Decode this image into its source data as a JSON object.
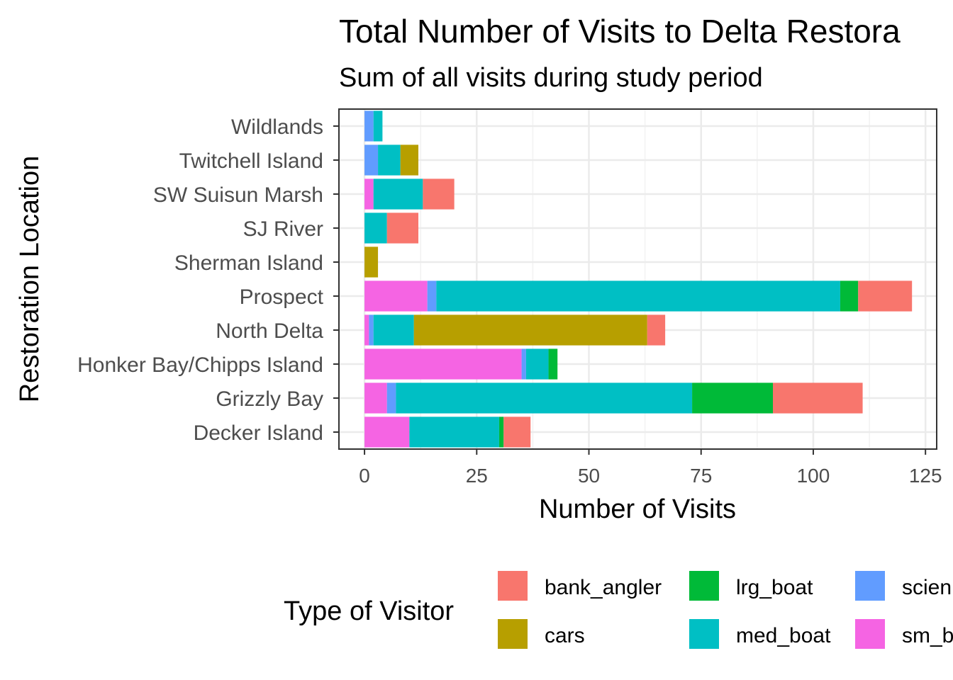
{
  "chart_data": {
    "type": "bar",
    "orientation": "horizontal",
    "stacked": true,
    "title": "Total Number of Visits to Delta Restora",
    "subtitle": "Sum of all visits during study period",
    "xlabel": "Number of Visits",
    "ylabel": "Restoration Location",
    "xlim": [
      -5.7,
      127.5
    ],
    "xticks": [
      0,
      25,
      50,
      75,
      100,
      125
    ],
    "grid": true,
    "legend_position": "bottom",
    "legend_title": "Type of Visitor",
    "categories": [
      "Decker Island",
      "Grizzly Bay",
      "Honker Bay/Chipps Island",
      "North Delta",
      "Prospect",
      "Sherman Island",
      "SJ River",
      "SW Suisun Marsh",
      "Twitchell Island",
      "Wildlands"
    ],
    "stack_order": [
      "sm_boat",
      "scientist",
      "med_boat",
      "lrg_boat",
      "cars",
      "bank_angler"
    ],
    "series": [
      {
        "name": "bank_angler",
        "color": "#F8766D",
        "values": [
          6,
          20,
          0,
          4,
          12,
          0,
          7,
          7,
          0,
          0
        ]
      },
      {
        "name": "cars",
        "color": "#B79F00",
        "values": [
          0,
          0,
          0,
          52,
          0,
          3,
          0,
          0,
          4,
          0
        ]
      },
      {
        "name": "lrg_boat",
        "color": "#00BA38",
        "values": [
          1,
          18,
          2,
          0,
          4,
          0,
          0,
          0,
          0,
          0
        ]
      },
      {
        "name": "med_boat",
        "color": "#00BFC4",
        "values": [
          20,
          66,
          5,
          9,
          90,
          0,
          5,
          11,
          5,
          2
        ]
      },
      {
        "name": "scientist",
        "color": "#619CFF",
        "values": [
          0,
          2,
          1,
          1,
          2,
          0,
          0,
          0,
          3,
          2
        ]
      },
      {
        "name": "sm_boat",
        "color": "#F564E3",
        "values": [
          10,
          5,
          35,
          1,
          14,
          0,
          0,
          2,
          0,
          0
        ]
      }
    ],
    "legend_labels": [
      "bank_angler",
      "cars",
      "lrg_boat",
      "med_boat",
      "scien",
      "sm_b"
    ]
  }
}
